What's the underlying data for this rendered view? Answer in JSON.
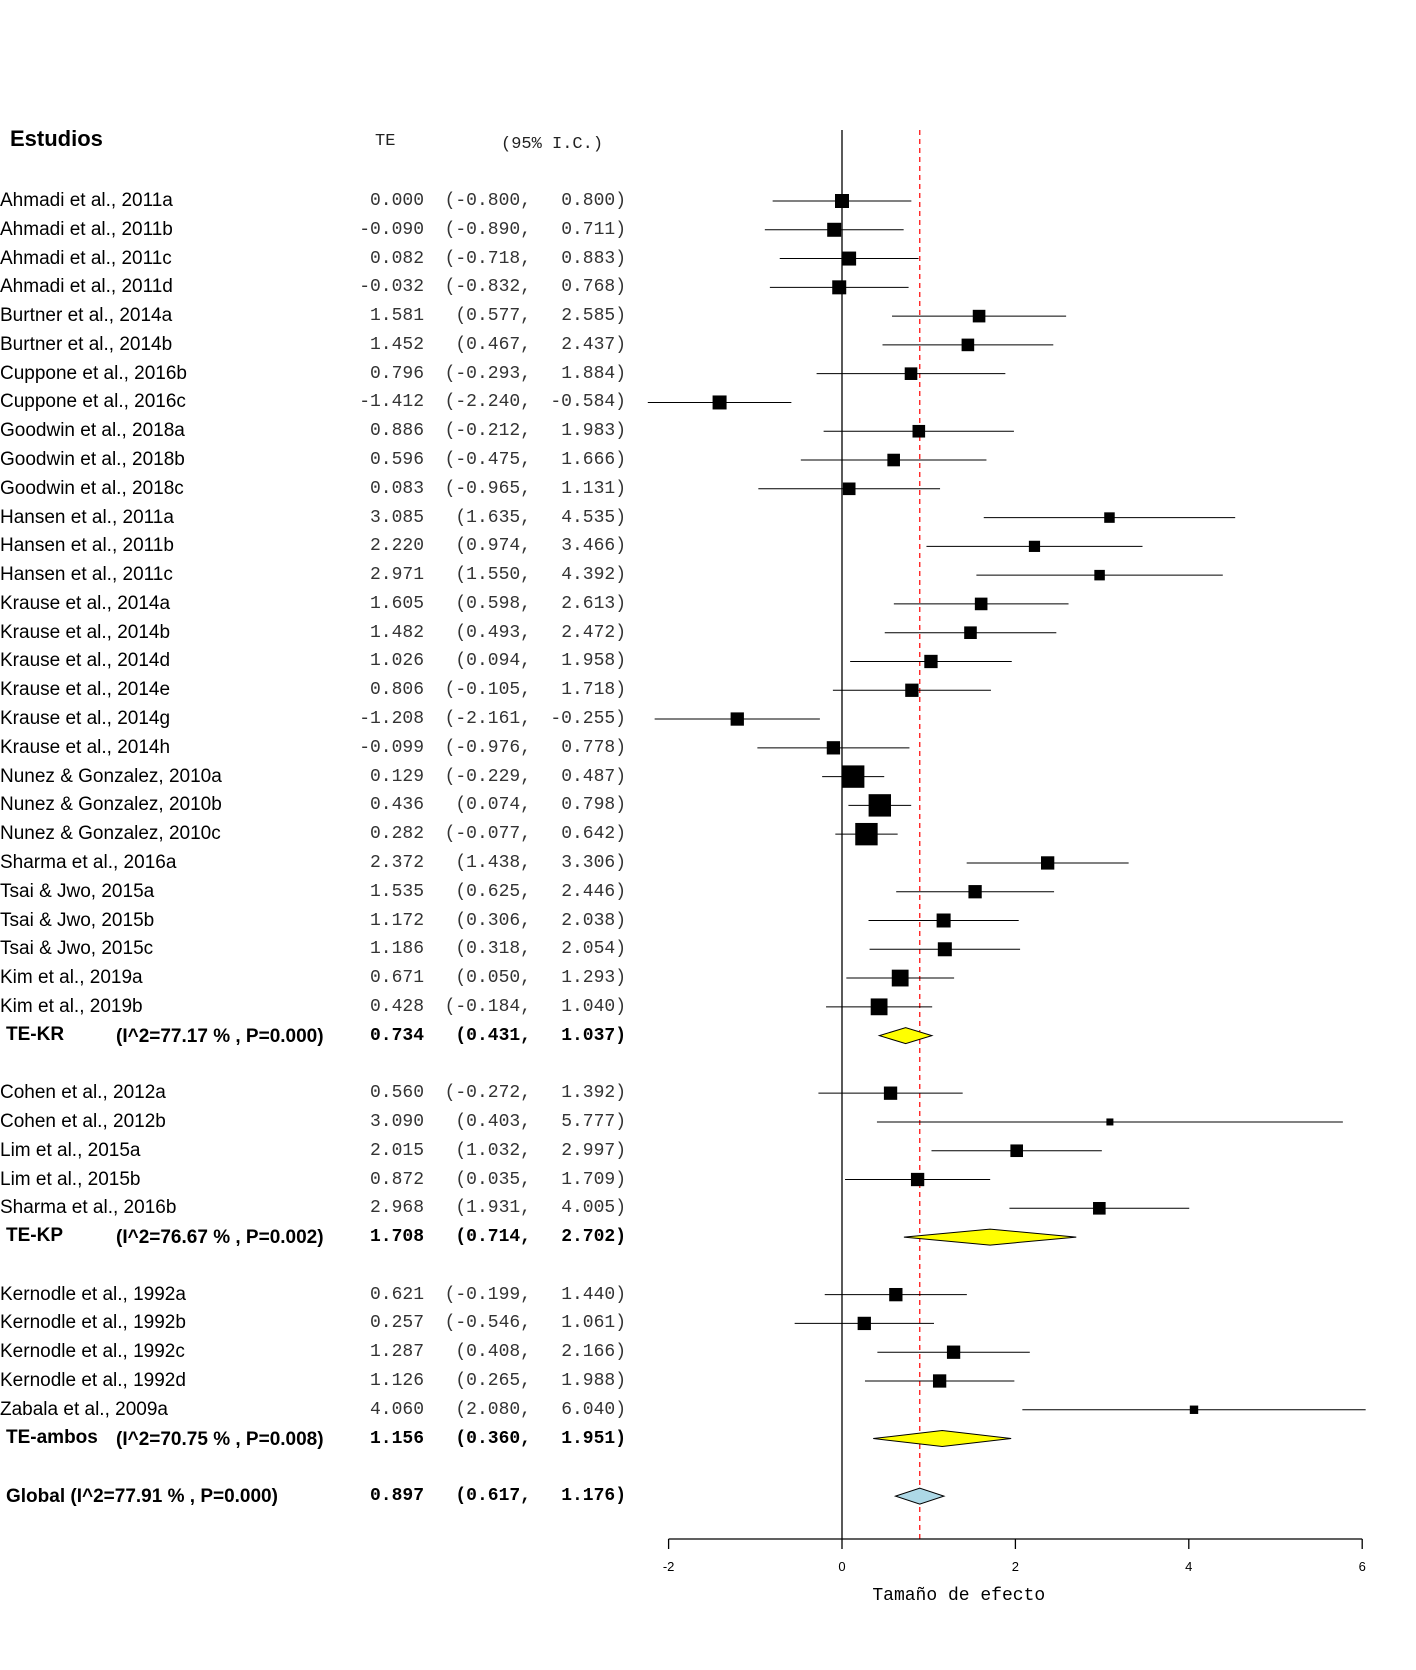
{
  "header": {
    "studies": "Estudios",
    "te": "TE",
    "ci": "(95% I.C.)"
  },
  "chart_data": {
    "type": "forest",
    "xlabel": "Tamaño de efecto",
    "xlim": [
      -2,
      6
    ],
    "xticks": [
      "-2",
      "0",
      "2",
      "4",
      "6"
    ],
    "reference_line": 0,
    "overall_line": 0.897,
    "colors": {
      "subgroup_diamond": "#ffff00",
      "overall_diamond": "#add8e6",
      "overall_line": "#ff0000",
      "box": "#000000"
    },
    "rows": [
      {
        "kind": "study",
        "label": "Ahmadi et al., 2011a",
        "te": "0.000",
        "lo": "-0.800",
        "hi": "0.800",
        "weight_rel": 1.0
      },
      {
        "kind": "study",
        "label": "Ahmadi et al., 2011b",
        "te": "-0.090",
        "lo": "-0.890",
        "hi": "0.711",
        "weight_rel": 1.0
      },
      {
        "kind": "study",
        "label": "Ahmadi et al., 2011c",
        "te": "0.082",
        "lo": "-0.718",
        "hi": "0.883",
        "weight_rel": 1.0
      },
      {
        "kind": "study",
        "label": "Ahmadi et al., 2011d",
        "te": "-0.032",
        "lo": "-0.832",
        "hi": "0.768",
        "weight_rel": 1.0
      },
      {
        "kind": "study",
        "label": "Burtner et al., 2014a",
        "te": "1.581",
        "lo": "0.577",
        "hi": "2.585",
        "weight_rel": 0.9
      },
      {
        "kind": "study",
        "label": "Burtner et al., 2014b",
        "te": "1.452",
        "lo": "0.467",
        "hi": "2.437",
        "weight_rel": 0.9
      },
      {
        "kind": "study",
        "label": "Cuppone et al., 2016b",
        "te": "0.796",
        "lo": "-0.293",
        "hi": "1.884",
        "weight_rel": 0.9
      },
      {
        "kind": "study",
        "label": "Cuppone et al., 2016c",
        "te": "-1.412",
        "lo": "-2.240",
        "hi": "-0.584",
        "weight_rel": 1.0
      },
      {
        "kind": "study",
        "label": "Goodwin et al., 2018a",
        "te": "0.886",
        "lo": "-0.212",
        "hi": "1.983",
        "weight_rel": 0.9
      },
      {
        "kind": "study",
        "label": "Goodwin et al., 2018b",
        "te": "0.596",
        "lo": "-0.475",
        "hi": "1.666",
        "weight_rel": 0.9
      },
      {
        "kind": "study",
        "label": "Goodwin et al., 2018c",
        "te": "0.083",
        "lo": "-0.965",
        "hi": "1.131",
        "weight_rel": 0.9
      },
      {
        "kind": "study",
        "label": "Hansen et al., 2011a",
        "te": "3.085",
        "lo": "1.635",
        "hi": "4.535",
        "weight_rel": 0.75
      },
      {
        "kind": "study",
        "label": "Hansen et al., 2011b",
        "te": "2.220",
        "lo": "0.974",
        "hi": "3.466",
        "weight_rel": 0.8
      },
      {
        "kind": "study",
        "label": "Hansen et al., 2011c",
        "te": "2.971",
        "lo": "1.550",
        "hi": "4.392",
        "weight_rel": 0.75
      },
      {
        "kind": "study",
        "label": "Krause et al., 2014a",
        "te": "1.605",
        "lo": "0.598",
        "hi": "2.613",
        "weight_rel": 0.9
      },
      {
        "kind": "study",
        "label": "Krause et al., 2014b",
        "te": "1.482",
        "lo": "0.493",
        "hi": "2.472",
        "weight_rel": 0.9
      },
      {
        "kind": "study",
        "label": "Krause et al., 2014d",
        "te": "1.026",
        "lo": "0.094",
        "hi": "1.958",
        "weight_rel": 0.95
      },
      {
        "kind": "study",
        "label": "Krause et al., 2014e",
        "te": "0.806",
        "lo": "-0.105",
        "hi": "1.718",
        "weight_rel": 0.95
      },
      {
        "kind": "study",
        "label": "Krause et al., 2014g",
        "te": "-1.208",
        "lo": "-2.161",
        "hi": "-0.255",
        "weight_rel": 0.95
      },
      {
        "kind": "study",
        "label": "Krause et al., 2014h",
        "te": "-0.099",
        "lo": "-0.976",
        "hi": "0.778",
        "weight_rel": 0.95
      },
      {
        "kind": "study",
        "label": "Nunez & Gonzalez, 2010a",
        "te": "0.129",
        "lo": "-0.229",
        "hi": "0.487",
        "weight_rel": 1.6
      },
      {
        "kind": "study",
        "label": "Nunez & Gonzalez, 2010b",
        "te": "0.436",
        "lo": "0.074",
        "hi": "0.798",
        "weight_rel": 1.6
      },
      {
        "kind": "study",
        "label": "Nunez & Gonzalez, 2010c",
        "te": "0.282",
        "lo": "-0.077",
        "hi": "0.642",
        "weight_rel": 1.6
      },
      {
        "kind": "study",
        "label": "Sharma et al., 2016a",
        "te": "2.372",
        "lo": "1.438",
        "hi": "3.306",
        "weight_rel": 0.95
      },
      {
        "kind": "study",
        "label": "Tsai & Jwo, 2015a",
        "te": "1.535",
        "lo": "0.625",
        "hi": "2.446",
        "weight_rel": 0.95
      },
      {
        "kind": "study",
        "label": "Tsai & Jwo, 2015b",
        "te": "1.172",
        "lo": "0.306",
        "hi": "2.038",
        "weight_rel": 1.0
      },
      {
        "kind": "study",
        "label": "Tsai & Jwo, 2015c",
        "te": "1.186",
        "lo": "0.318",
        "hi": "2.054",
        "weight_rel": 1.0
      },
      {
        "kind": "study",
        "label": "Kim et al., 2019a",
        "te": "0.671",
        "lo": "0.050",
        "hi": "1.293",
        "weight_rel": 1.2
      },
      {
        "kind": "study",
        "label": "Kim et al., 2019b",
        "te": "0.428",
        "lo": "-0.184",
        "hi": "1.040",
        "weight_rel": 1.2
      },
      {
        "kind": "subtotal",
        "label": "TE-KR",
        "stats": "(I^2=77.17 % , P=0.000)",
        "te": "0.734",
        "lo": "0.431",
        "hi": "1.037"
      },
      {
        "kind": "blank"
      },
      {
        "kind": "study",
        "label": "Cohen et al., 2012a",
        "te": "0.560",
        "lo": "-0.272",
        "hi": "1.392",
        "weight_rel": 0.95
      },
      {
        "kind": "study",
        "label": "Cohen et al., 2012b",
        "te": "3.090",
        "lo": "0.403",
        "hi": "5.777",
        "weight_rel": 0.5
      },
      {
        "kind": "study",
        "label": "Lim et al., 2015a",
        "te": "2.015",
        "lo": "1.032",
        "hi": "2.997",
        "weight_rel": 0.9
      },
      {
        "kind": "study",
        "label": "Lim et al., 2015b",
        "te": "0.872",
        "lo": "0.035",
        "hi": "1.709",
        "weight_rel": 0.95
      },
      {
        "kind": "study",
        "label": "Sharma et al., 2016b",
        "te": "2.968",
        "lo": "1.931",
        "hi": "4.005",
        "weight_rel": 0.9
      },
      {
        "kind": "subtotal",
        "label": "TE-KP",
        "stats": "(I^2=76.67 % , P=0.002)",
        "te": "1.708",
        "lo": "0.714",
        "hi": "2.702"
      },
      {
        "kind": "blank"
      },
      {
        "kind": "study",
        "label": "Kernodle et al., 1992a",
        "te": "0.621",
        "lo": "-0.199",
        "hi": "1.440",
        "weight_rel": 0.95
      },
      {
        "kind": "study",
        "label": "Kernodle et al., 1992b",
        "te": "0.257",
        "lo": "-0.546",
        "hi": "1.061",
        "weight_rel": 0.95
      },
      {
        "kind": "study",
        "label": "Kernodle et al., 1992c",
        "te": "1.287",
        "lo": "0.408",
        "hi": "2.166",
        "weight_rel": 0.95
      },
      {
        "kind": "study",
        "label": "Kernodle et al., 1992d",
        "te": "1.126",
        "lo": "0.265",
        "hi": "1.988",
        "weight_rel": 0.95
      },
      {
        "kind": "study",
        "label": "Zabala et al., 2009a",
        "te": "4.060",
        "lo": "2.080",
        "hi": "6.040",
        "weight_rel": 0.6
      },
      {
        "kind": "subtotal",
        "label": "TE-ambos",
        "stats": "(I^2=70.75 % , P=0.008)",
        "te": "1.156",
        "lo": "0.360",
        "hi": "1.951"
      },
      {
        "kind": "blank"
      },
      {
        "kind": "overall",
        "label": "Global (I^2=77.91 % , P=0.000)",
        "te": "0.897",
        "lo": "0.617",
        "hi": "1.176"
      }
    ]
  }
}
